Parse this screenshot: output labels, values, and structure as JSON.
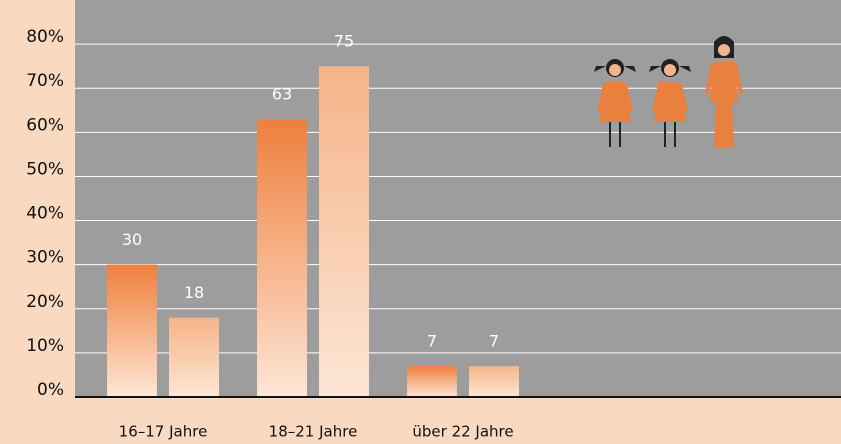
{
  "chart_data": {
    "type": "bar",
    "categories": [
      "16–17 Jahre",
      "18–21 Jahre",
      "über 22 Jahre"
    ],
    "series": [
      {
        "color": "#ef7f3c",
        "values": [
          30,
          63,
          7
        ]
      },
      {
        "color": "#f5b488",
        "values": [
          18,
          75,
          7
        ]
      }
    ],
    "ylim": [
      0,
      90
    ],
    "yticks": [
      {
        "value": 0,
        "label": "0%"
      },
      {
        "value": 10,
        "label": "10%"
      },
      {
        "value": 20,
        "label": "20%"
      },
      {
        "value": 30,
        "label": "30%"
      },
      {
        "value": 40,
        "label": "40%"
      },
      {
        "value": 50,
        "label": "50%"
      },
      {
        "value": 60,
        "label": "60%"
      },
      {
        "value": 70,
        "label": "70%"
      },
      {
        "value": 80,
        "label": "80%"
      }
    ],
    "grid": true
  }
}
